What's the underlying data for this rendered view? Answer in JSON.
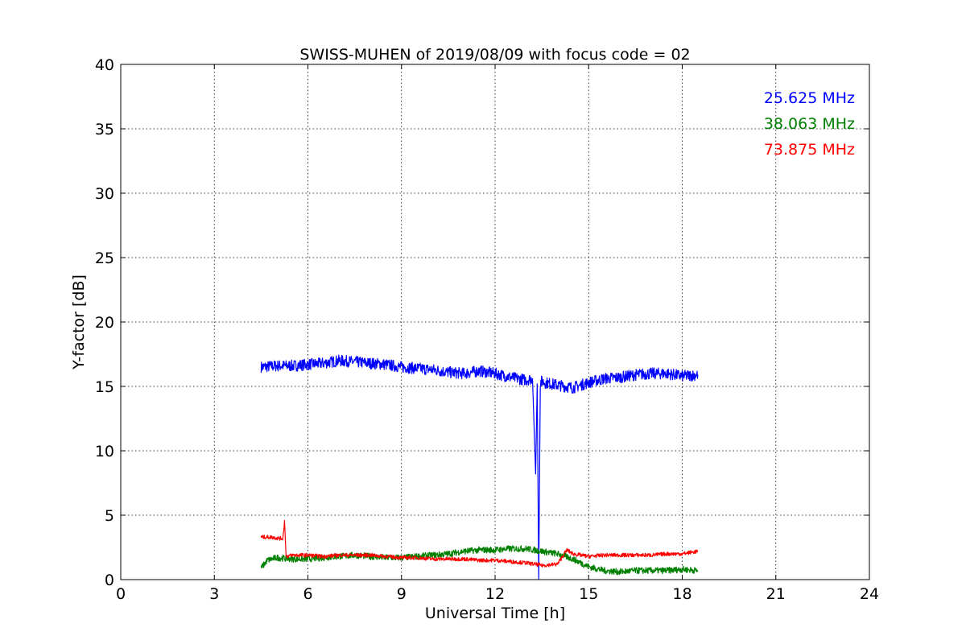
{
  "chart_data": {
    "type": "line",
    "title": "SWISS-MUHEN of 2019/08/09 with focus code = 02",
    "xlabel": "Universal Time [h]",
    "ylabel": "Y-factor [dB]",
    "xlim": [
      0,
      24
    ],
    "ylim": [
      0,
      40
    ],
    "xticks": [
      0,
      3,
      6,
      9,
      12,
      15,
      18,
      21,
      24
    ],
    "yticks": [
      0,
      5,
      10,
      15,
      20,
      25,
      30,
      35,
      40
    ],
    "grid": true,
    "legend_placement": "top-right",
    "series": [
      {
        "name": "25.625 MHz",
        "color": "#0000ff",
        "x": [
          4.5,
          5.0,
          5.5,
          6.0,
          6.5,
          7.0,
          7.5,
          8.0,
          8.5,
          9.0,
          9.5,
          10.0,
          10.5,
          11.0,
          11.5,
          12.0,
          12.5,
          13.0,
          13.2,
          13.3,
          13.35,
          13.4,
          13.45,
          13.5,
          13.6,
          14.0,
          14.5,
          15.0,
          15.5,
          16.0,
          16.5,
          17.0,
          17.5,
          18.0,
          18.5
        ],
        "y": [
          16.5,
          16.6,
          16.6,
          16.7,
          16.8,
          17.0,
          16.9,
          16.8,
          16.7,
          16.5,
          16.4,
          16.3,
          16.1,
          16.0,
          16.2,
          16.0,
          15.7,
          15.5,
          15.6,
          8.2,
          15.2,
          0.0,
          15.3,
          15.4,
          15.3,
          15.1,
          14.9,
          15.3,
          15.6,
          15.7,
          15.9,
          16.0,
          16.0,
          15.8,
          15.9
        ]
      },
      {
        "name": "38.063 MHz",
        "color": "#008000",
        "x": [
          4.5,
          4.7,
          5.0,
          5.5,
          6.0,
          6.5,
          7.0,
          7.5,
          8.0,
          8.5,
          9.0,
          9.5,
          10.0,
          10.5,
          11.0,
          11.5,
          12.0,
          12.5,
          13.0,
          13.5,
          14.0,
          14.5,
          15.0,
          15.5,
          16.0,
          16.5,
          17.0,
          17.5,
          18.0,
          18.5
        ],
        "y": [
          0.9,
          1.5,
          1.7,
          1.6,
          1.6,
          1.7,
          1.8,
          1.9,
          1.8,
          1.7,
          1.7,
          1.8,
          1.9,
          2.0,
          2.2,
          2.3,
          2.3,
          2.4,
          2.4,
          2.2,
          2.0,
          1.6,
          1.0,
          0.7,
          0.6,
          0.7,
          0.7,
          0.7,
          0.8,
          0.7
        ]
      },
      {
        "name": "73.875 MHz",
        "color": "#ff0000",
        "x": [
          4.5,
          4.8,
          5.1,
          5.2,
          5.25,
          5.3,
          5.5,
          6.0,
          6.5,
          7.0,
          7.5,
          8.0,
          8.5,
          9.0,
          9.5,
          10.0,
          10.5,
          11.0,
          11.5,
          12.0,
          12.5,
          13.0,
          13.5,
          14.0,
          14.3,
          14.5,
          15.0,
          15.5,
          16.0,
          16.5,
          17.0,
          17.5,
          18.0,
          18.5
        ],
        "y": [
          3.3,
          3.3,
          3.2,
          3.2,
          4.6,
          1.8,
          1.9,
          1.9,
          1.8,
          1.9,
          1.9,
          1.9,
          1.8,
          1.7,
          1.7,
          1.6,
          1.6,
          1.6,
          1.5,
          1.5,
          1.4,
          1.3,
          1.1,
          1.2,
          2.3,
          2.0,
          1.8,
          1.9,
          1.9,
          1.9,
          1.9,
          2.0,
          2.0,
          2.2
        ]
      }
    ]
  }
}
